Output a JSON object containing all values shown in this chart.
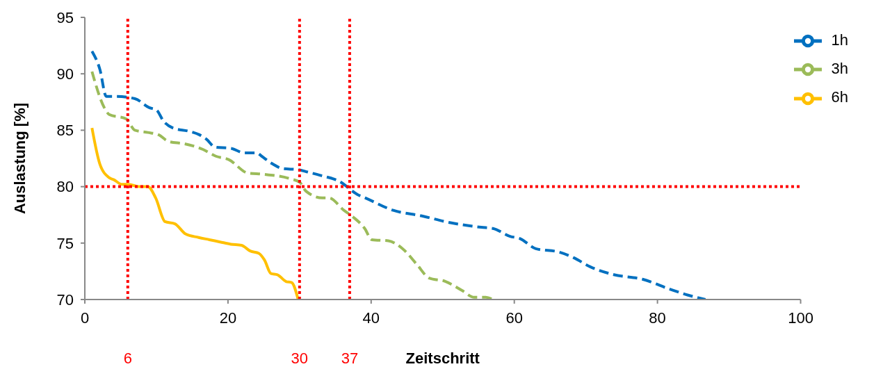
{
  "chart_data": {
    "type": "line",
    "xlabel": "Zeitschritt",
    "ylabel": "Auslastung [%]",
    "xlim": [
      0,
      100
    ],
    "xticks": [
      0,
      20,
      40,
      60,
      80,
      100
    ],
    "ylim": [
      70,
      95
    ],
    "yticks": [
      70,
      75,
      80,
      85,
      90,
      95
    ],
    "grid": false,
    "legend": "top right",
    "marker": "none",
    "series": [
      {
        "name": "1h",
        "color": "#0070c0",
        "line_style": "dashed",
        "x": [
          1,
          2.1,
          3,
          4.3,
          7,
          9,
          10,
          11,
          12.3,
          14.6,
          16,
          17,
          18.2,
          20.4,
          22.2,
          24,
          24.7,
          26,
          27.7,
          29.8,
          31.1,
          32.9,
          36,
          37,
          38.1,
          39.2,
          43.1,
          47.1,
          51.1,
          55.4,
          57,
          59.4,
          60.8,
          63,
          66.3,
          68.3,
          70.6,
          73.9,
          77.9,
          81.8,
          84.2,
          86.7
        ],
        "values": [
          92,
          90.4,
          88,
          88,
          87.8,
          87,
          86.8,
          85.8,
          85.2,
          84.9,
          84.6,
          84.2,
          83.5,
          83.4,
          83,
          83,
          82.7,
          82.1,
          81.6,
          81.5,
          81.3,
          81,
          80.3,
          79.8,
          79.3,
          79,
          77.9,
          77.4,
          76.8,
          76.4,
          76.3,
          75.6,
          75.4,
          74.5,
          74.2,
          73.7,
          72.9,
          72.2,
          71.8,
          70.9,
          70.4,
          70
        ]
      },
      {
        "name": "3h",
        "color": "#9bbb59",
        "line_style": "dashed",
        "x": [
          1,
          2.8,
          3.4,
          5.8,
          7,
          8.8,
          10.3,
          11.7,
          13.9,
          16.5,
          18.3,
          20.1,
          22.8,
          24.9,
          28.7,
          30,
          30.9,
          33.2,
          34.1,
          36.2,
          37.5,
          39.1,
          40.1,
          42.4,
          44.4,
          46.4,
          48.1,
          50.4,
          52.7,
          54.4,
          56,
          57
        ],
        "values": [
          90.2,
          86.9,
          86.4,
          86,
          85,
          84.8,
          84.6,
          84,
          83.8,
          83.3,
          82.7,
          82.4,
          81.2,
          81.1,
          80.7,
          80.4,
          79.6,
          79,
          79,
          77.9,
          77.3,
          76.3,
          75.3,
          75.2,
          74.5,
          73.1,
          71.9,
          71.6,
          70.8,
          70.2,
          70.2,
          70
        ]
      },
      {
        "name": "6h",
        "color": "#ffc000",
        "line_style": "solid",
        "x": [
          1,
          2.1,
          3.4,
          4.1,
          5.2,
          6.1,
          7.6,
          8.8,
          9.9,
          11.2,
          12.6,
          14.1,
          15.9,
          17.4,
          18.9,
          20.4,
          21.9,
          23.1,
          24.3,
          25.1,
          26,
          26.9,
          28.1,
          28.9,
          29.8
        ],
        "values": [
          85.2,
          82,
          80.8,
          80.6,
          80.2,
          80.2,
          80,
          80,
          79,
          76.9,
          76.7,
          75.8,
          75.5,
          75.3,
          75.1,
          74.9,
          74.8,
          74.3,
          74.1,
          73.5,
          72.3,
          72.2,
          71.6,
          71.5,
          70
        ]
      }
    ],
    "ref_lines": [
      {
        "axis": "y",
        "value": 80,
        "color": "#ff0000",
        "line_style": "dotted"
      },
      {
        "axis": "x",
        "value": 6,
        "label": "6",
        "color": "#ff0000",
        "line_style": "dotted"
      },
      {
        "axis": "x",
        "value": 30,
        "label": "30",
        "color": "#ff0000",
        "line_style": "dotted"
      },
      {
        "axis": "x",
        "value": 37,
        "label": "37",
        "color": "#ff0000",
        "line_style": "dotted"
      }
    ]
  }
}
